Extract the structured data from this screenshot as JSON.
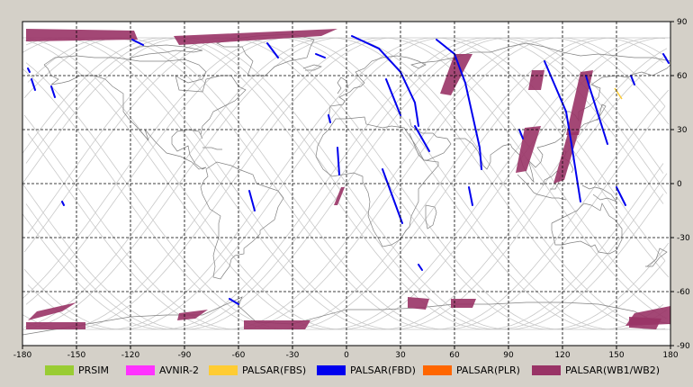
{
  "map": {
    "lon_ticks": [
      "-180",
      "-150",
      "-120",
      "-90",
      "-60",
      "-30",
      "0",
      "30",
      "60",
      "90",
      "120",
      "150",
      "180"
    ],
    "lat_ticks": [
      "90",
      "60",
      "30",
      "0",
      "-30",
      "-60",
      "-90"
    ],
    "lon_range": [
      -180,
      180
    ],
    "lat_range": [
      -90,
      90
    ],
    "grid": "dashed"
  },
  "legend": [
    {
      "label": "PRSIM",
      "color": "#99cc33"
    },
    {
      "label": "AVNIR-2",
      "color": "#ff33ff"
    },
    {
      "label": "PALSAR(FBS)",
      "color": "#ffcc33"
    },
    {
      "label": "PALSAR(FBD)",
      "color": "#0000ee"
    },
    {
      "label": "PALSAR(PLR)",
      "color": "#ff6600"
    },
    {
      "label": "PALSAR(WB1/WB2)",
      "color": "#993366"
    }
  ],
  "colors": {
    "fbd": "#0000ee",
    "wb": "#993366",
    "fbs": "#ffcc33",
    "coast": "#808080",
    "orbit": "#c8c8c8"
  },
  "fbd_strips": [
    {
      "pts": [
        [
          -164,
          54
        ],
        [
          -162,
          48
        ]
      ]
    },
    {
      "pts": [
        [
          -119,
          80
        ],
        [
          -113,
          77
        ]
      ]
    },
    {
      "pts": [
        [
          -44,
          78
        ],
        [
          -38,
          70
        ]
      ]
    },
    {
      "pts": [
        [
          -17,
          72
        ],
        [
          -12,
          70
        ]
      ]
    },
    {
      "pts": [
        [
          3,
          82
        ],
        [
          18,
          75
        ],
        [
          30,
          62
        ],
        [
          38,
          45
        ],
        [
          40,
          32
        ]
      ]
    },
    {
      "pts": [
        [
          22,
          58
        ],
        [
          30,
          38
        ]
      ]
    },
    {
      "pts": [
        [
          38,
          32
        ],
        [
          46,
          18
        ]
      ]
    },
    {
      "pts": [
        [
          -5,
          20
        ],
        [
          -4,
          5
        ]
      ]
    },
    {
      "pts": [
        [
          20,
          8
        ],
        [
          31,
          -22
        ]
      ]
    },
    {
      "pts": [
        [
          50,
          80
        ],
        [
          60,
          72
        ],
        [
          66,
          56
        ],
        [
          70,
          38
        ],
        [
          74,
          20
        ],
        [
          75,
          8
        ]
      ]
    },
    {
      "pts": [
        [
          -54,
          -4
        ],
        [
          -51,
          -15
        ]
      ]
    },
    {
      "pts": [
        [
          -65,
          -64
        ],
        [
          -60,
          -67
        ]
      ]
    },
    {
      "pts": [
        [
          40,
          -45
        ],
        [
          42,
          -48
        ]
      ]
    },
    {
      "pts": [
        [
          110,
          68
        ],
        [
          122,
          40
        ],
        [
          125,
          22
        ],
        [
          130,
          -10
        ]
      ]
    },
    {
      "pts": [
        [
          133,
          60
        ],
        [
          145,
          22
        ]
      ]
    },
    {
      "pts": [
        [
          150,
          -2
        ],
        [
          155,
          -12
        ]
      ]
    },
    {
      "pts": [
        [
          158,
          60
        ],
        [
          160,
          55
        ]
      ]
    },
    {
      "pts": [
        [
          176,
          72
        ],
        [
          179,
          67
        ]
      ]
    },
    {
      "pts": [
        [
          -177,
          64
        ],
        [
          -176,
          62
        ]
      ]
    },
    {
      "pts": [
        [
          -175,
          58
        ],
        [
          -173,
          52
        ]
      ]
    },
    {
      "pts": [
        [
          -158,
          -10
        ],
        [
          -157,
          -12
        ]
      ]
    },
    {
      "pts": [
        [
          -10,
          38
        ],
        [
          -9,
          34
        ]
      ]
    },
    {
      "pts": [
        [
          68,
          -2
        ],
        [
          70,
          -12
        ]
      ]
    },
    {
      "pts": [
        [
          96,
          30
        ],
        [
          98,
          25
        ]
      ]
    }
  ],
  "wb_polys": [
    [
      [
        -178,
        86
      ],
      [
        -118,
        85
      ],
      [
        -116,
        80
      ],
      [
        -178,
        79
      ]
    ],
    [
      [
        -96,
        82
      ],
      [
        -5,
        86
      ],
      [
        -14,
        82
      ],
      [
        -93,
        77
      ]
    ],
    [
      [
        -172,
        -71
      ],
      [
        -150,
        -66
      ],
      [
        -158,
        -71
      ],
      [
        -177,
        -76
      ]
    ],
    [
      [
        -178,
        -77
      ],
      [
        -145,
        -77
      ],
      [
        -145,
        -81
      ],
      [
        -178,
        -81
      ]
    ],
    [
      [
        -93,
        -72
      ],
      [
        -77,
        -70
      ],
      [
        -84,
        -75
      ],
      [
        -94,
        -76
      ]
    ],
    [
      [
        -57,
        -76
      ],
      [
        -20,
        -76
      ],
      [
        -23,
        -81
      ],
      [
        -57,
        -81
      ]
    ],
    [
      [
        -3,
        -2
      ],
      [
        -1,
        -2
      ],
      [
        -5,
        -12
      ],
      [
        -7,
        -12
      ]
    ],
    [
      [
        34,
        -63
      ],
      [
        46,
        -64
      ],
      [
        44,
        -70
      ],
      [
        34,
        -69
      ]
    ],
    [
      [
        58,
        -64
      ],
      [
        72,
        -64
      ],
      [
        70,
        -69
      ],
      [
        58,
        -69
      ]
    ],
    [
      [
        60,
        72
      ],
      [
        70,
        72
      ],
      [
        58,
        49
      ],
      [
        52,
        50
      ]
    ],
    [
      [
        99,
        31
      ],
      [
        108,
        32
      ],
      [
        100,
        7
      ],
      [
        94,
        6
      ]
    ],
    [
      [
        103,
        63
      ],
      [
        110,
        63
      ],
      [
        108,
        52
      ],
      [
        101,
        52
      ]
    ],
    [
      [
        130,
        62
      ],
      [
        137,
        63
      ],
      [
        129,
        27
      ],
      [
        122,
        27
      ]
    ],
    [
      [
        123,
        28
      ],
      [
        129,
        29
      ],
      [
        121,
        2
      ],
      [
        115,
        0
      ]
    ],
    [
      [
        160,
        -72
      ],
      [
        180,
        -68
      ],
      [
        180,
        -78
      ],
      [
        155,
        -79
      ]
    ],
    [
      [
        157,
        -74
      ],
      [
        175,
        -75
      ],
      [
        172,
        -81
      ],
      [
        157,
        -80
      ]
    ]
  ],
  "fbs_marks": [
    {
      "pts": [
        [
          149,
          53
        ],
        [
          153,
          47
        ]
      ]
    }
  ]
}
